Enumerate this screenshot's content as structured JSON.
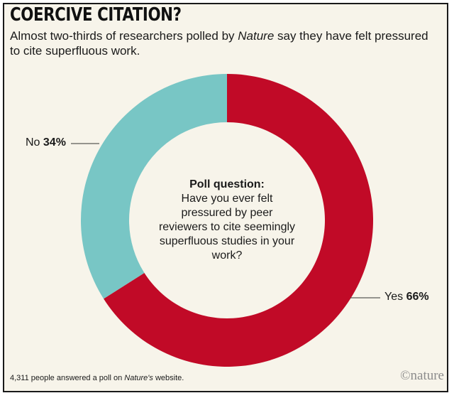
{
  "header": {
    "title": "COERCIVE CITATION?",
    "subtitle_before": "Almost two-thirds of researchers polled by ",
    "subtitle_italic": "Nature",
    "subtitle_after": " say they have felt pressured to cite superfluous work."
  },
  "center": {
    "question_label": "Poll question:",
    "question_text": "Have you ever felt pressured by peer reviewers to cite seemingly superfluous studies in your work?"
  },
  "footer": {
    "note_before": "4,311 people answered a poll on ",
    "note_italic": "Nature's",
    "note_after": " website.",
    "brand": "©nature"
  },
  "colors": {
    "yes": "#c10a27",
    "no": "#78c6c5"
  },
  "chart_data": {
    "type": "pie",
    "donut": true,
    "slices": [
      {
        "label": "Yes",
        "value": 66,
        "display": "66%",
        "color": "#c10a27"
      },
      {
        "label": "No",
        "value": 34,
        "display": "34%",
        "color": "#78c6c5"
      }
    ]
  }
}
